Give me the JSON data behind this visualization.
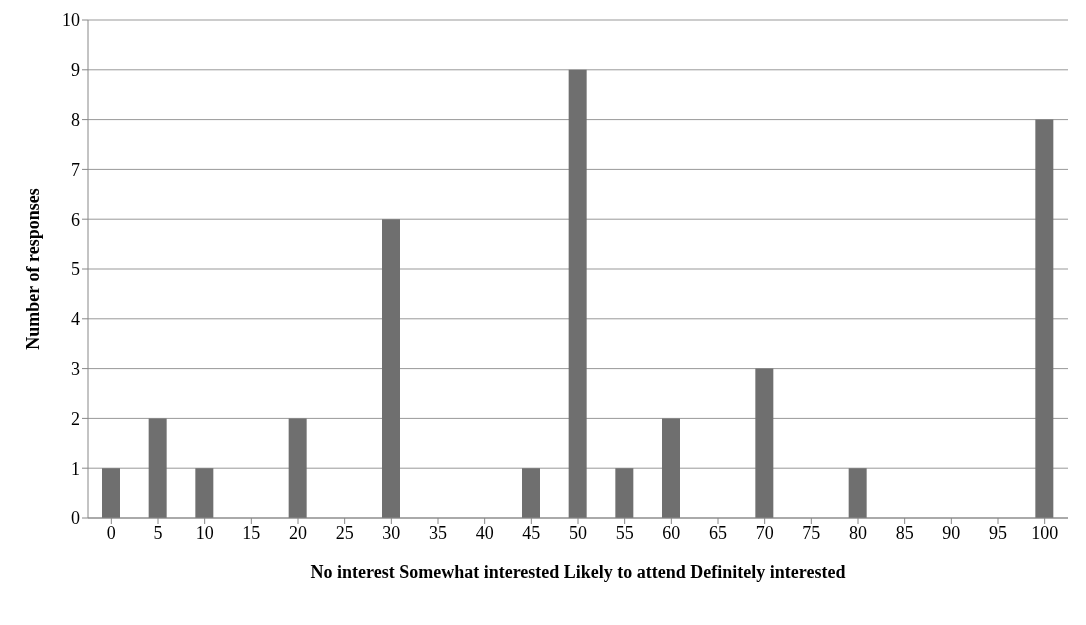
{
  "chart_data": {
    "type": "bar",
    "categories": [
      "0",
      "5",
      "10",
      "15",
      "20",
      "25",
      "30",
      "35",
      "40",
      "45",
      "50",
      "55",
      "60",
      "65",
      "70",
      "75",
      "80",
      "85",
      "90",
      "95",
      "100"
    ],
    "values": [
      1,
      2,
      1,
      0,
      2,
      0,
      6,
      0,
      0,
      1,
      9,
      1,
      2,
      0,
      3,
      0,
      1,
      0,
      0,
      0,
      8
    ],
    "color": "#6f6f6f",
    "ylabel": "Number of responses",
    "xlabel": "No interest      Somewhat interested      Likely to attend      Definitely interested",
    "ylim": [
      0,
      10
    ],
    "yticks": [
      0,
      1,
      2,
      3,
      4,
      5,
      6,
      7,
      8,
      9,
      10
    ],
    "grid": "y"
  }
}
